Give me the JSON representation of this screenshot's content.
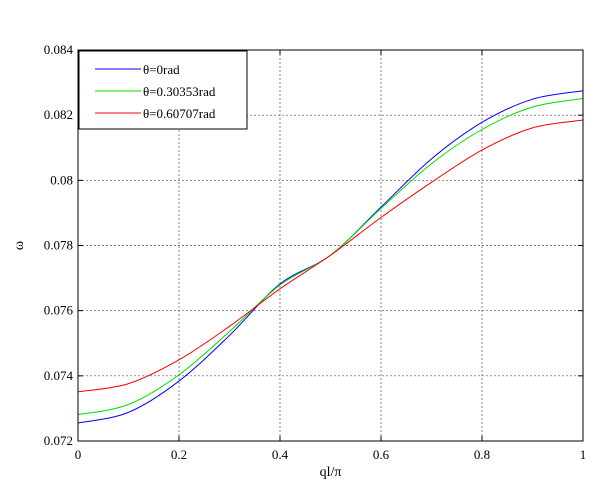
{
  "chart_data": {
    "type": "line",
    "xlabel": "ql/π",
    "ylabel": "ω",
    "xlim": [
      0,
      1
    ],
    "ylim": [
      0.072,
      0.084
    ],
    "xticks": [
      0,
      0.2,
      0.4,
      0.6,
      0.8,
      1
    ],
    "xtick_labels": [
      "0",
      "0.2",
      "0.4",
      "0.6",
      "0.8",
      "1"
    ],
    "yticks": [
      0.072,
      0.074,
      0.076,
      0.078,
      0.08,
      0.082,
      0.084
    ],
    "ytick_labels": [
      "0.072",
      "0.074",
      "0.076",
      "0.078",
      "0.08",
      "0.082",
      "0.084"
    ],
    "grid": true,
    "legend_position": "top-left",
    "x": [
      0,
      0.1,
      0.2,
      0.3,
      0.4,
      0.5,
      0.6,
      0.7,
      0.8,
      0.9,
      1.0
    ],
    "series": [
      {
        "name": "θ=0rad",
        "color": "#0000ff",
        "values": [
          0.07255,
          0.07288,
          0.07384,
          0.07524,
          0.07682,
          0.0777,
          0.07918,
          0.08066,
          0.08178,
          0.08249,
          0.08275
        ]
      },
      {
        "name": "θ=0.30353rad",
        "color": "#00dd00",
        "values": [
          0.07281,
          0.07312,
          0.07403,
          0.07536,
          0.07679,
          0.0777,
          0.07914,
          0.08051,
          0.08156,
          0.08225,
          0.08251
        ]
      },
      {
        "name": "θ=0.60707rad",
        "color": "#ff0000",
        "values": [
          0.07351,
          0.07376,
          0.07449,
          0.07552,
          0.07667,
          0.0777,
          0.07886,
          0.07994,
          0.08093,
          0.08161,
          0.08185
        ]
      }
    ]
  }
}
